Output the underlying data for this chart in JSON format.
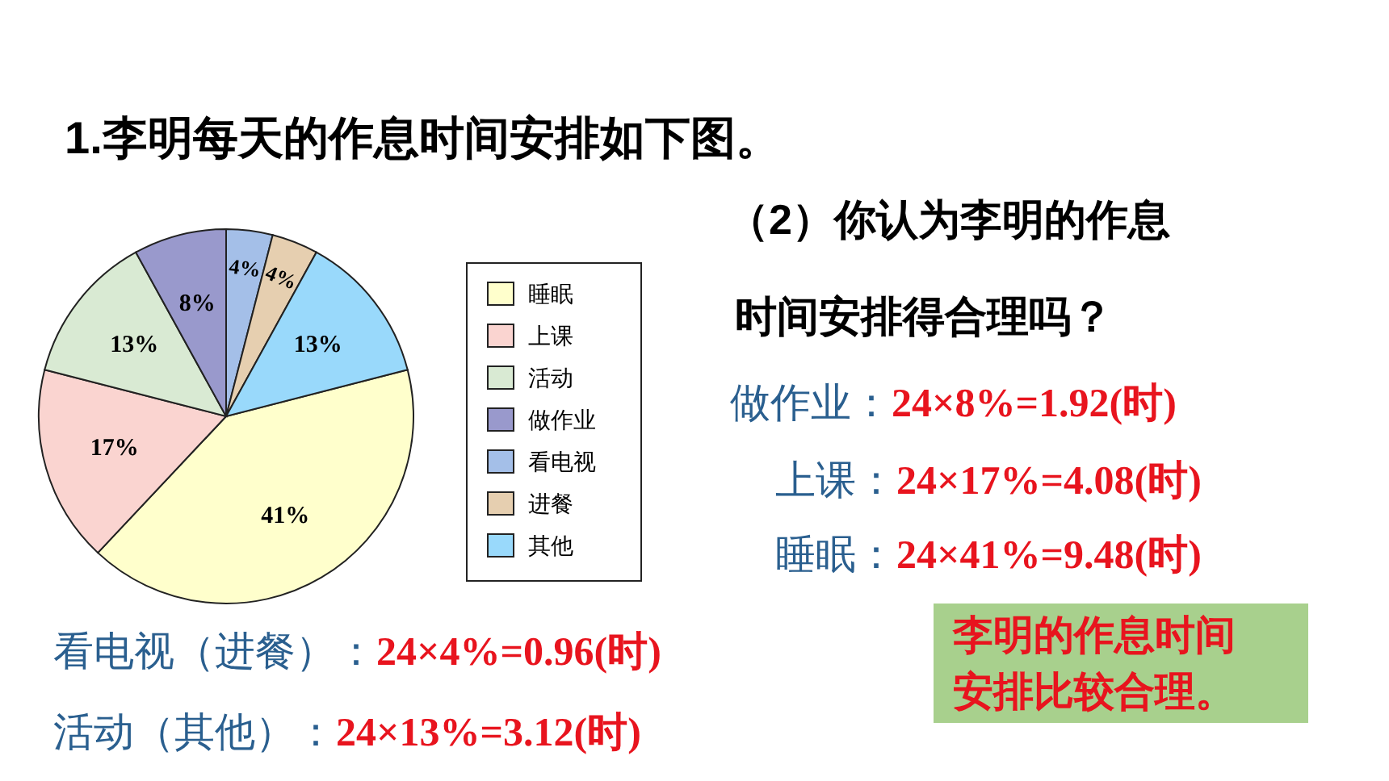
{
  "chart_data": {
    "type": "pie",
    "title": "1.李明每天的作息时间安排如下图。",
    "categories": [
      "睡眠",
      "上课",
      "活动",
      "做作业",
      "看电视",
      "进餐",
      "其他"
    ],
    "values": [
      41,
      17,
      13,
      8,
      4,
      4,
      13
    ],
    "colors": [
      "#ffffcc",
      "#fad4d0",
      "#d9ead3",
      "#9999cc",
      "#a4bfe8",
      "#e6cfb0",
      "#99d9fb"
    ],
    "value_labels": [
      "41%",
      "17%",
      "13%",
      "8%",
      "4%",
      "4%",
      "13%"
    ],
    "legend": "right",
    "annotations": [
      "（2）你认为李明的作息时间安排得合理吗？",
      "做作业：24×8%=1.92(时)",
      "上课：24×17%=4.08(时)",
      "睡眠：24×41%=9.48(时)",
      "看电视（进餐）：24×4%=0.96(时)",
      "活动（其他）：24×13%=3.12(时)",
      "李明的作息时间安排比较合理。"
    ]
  }
}
